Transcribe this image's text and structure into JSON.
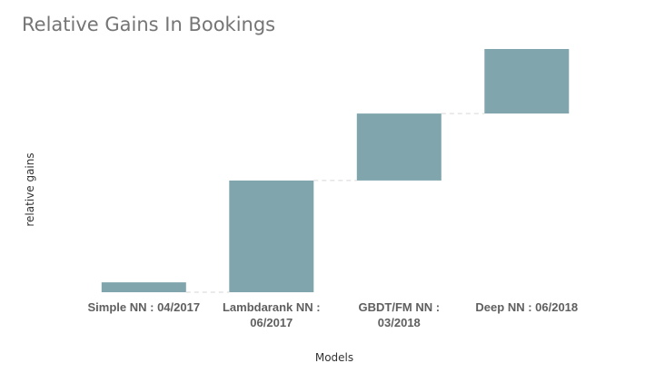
{
  "chart_data": {
    "type": "bar",
    "subtype": "waterfall",
    "title": "Relative Gains In Bookings",
    "xlabel": "Models",
    "ylabel": "relative gains",
    "categories": [
      [
        "Simple NN : 04/2017"
      ],
      [
        "Lambdarank NN :",
        "06/2017"
      ],
      [
        "GBDT/FM NN :",
        "03/2018"
      ],
      [
        "Deep NN : 06/2018"
      ]
    ],
    "values": [
      -0.4,
      4.5,
      2.7,
      2.6
    ],
    "ylim": [
      -0.4,
      9.4
    ],
    "grid": false,
    "legend": "none",
    "colors": {
      "bar": "#80a5ad",
      "connector": "#d6d6d6"
    }
  }
}
